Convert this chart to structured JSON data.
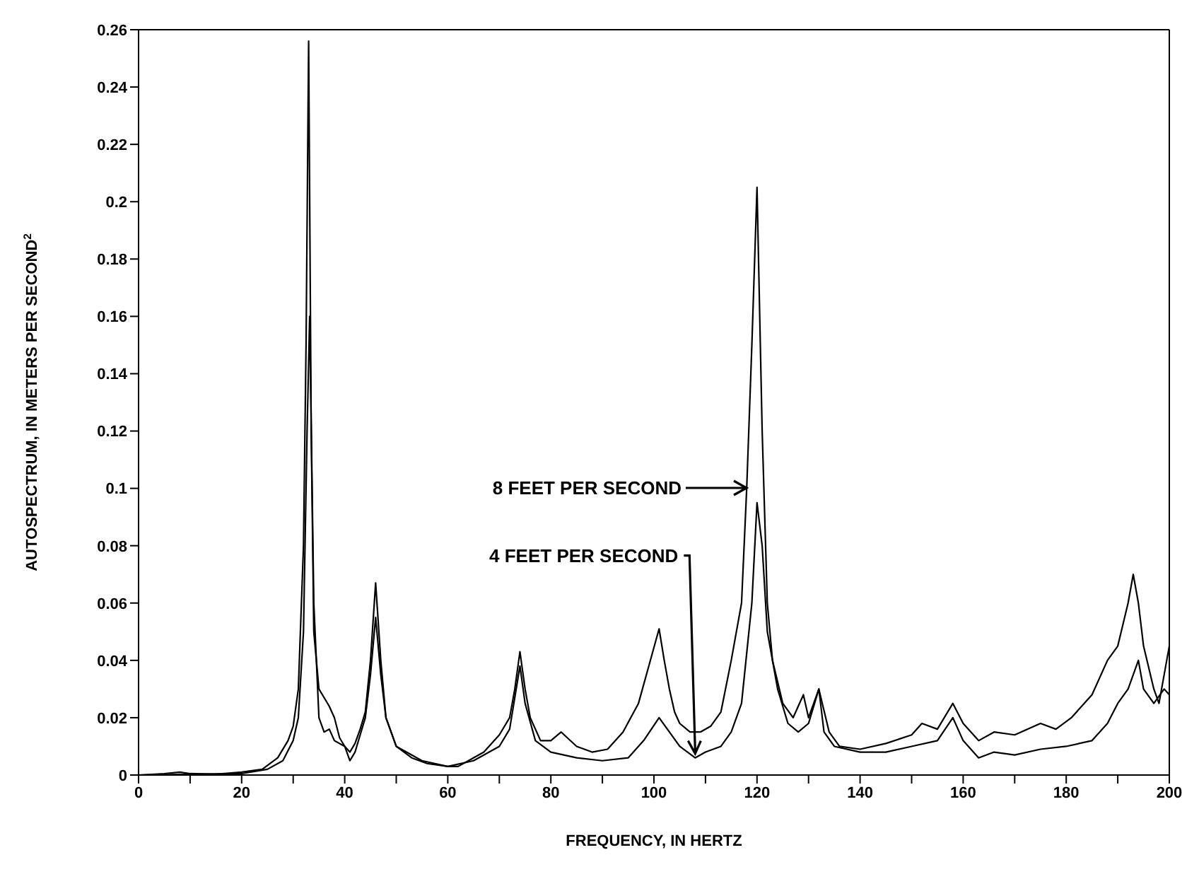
{
  "chart_data": {
    "type": "line",
    "xlabel": "FREQUENCY, IN HERTZ",
    "ylabel": "AUTOSPECTRUM, IN METERS PER SECOND$^{2}$",
    "xlim": [
      0,
      200
    ],
    "ylim": [
      0,
      0.26
    ],
    "xticks": [
      0,
      {
        "value": 10,
        "label": null
      },
      20,
      {
        "value": 30,
        "label": null
      },
      40,
      {
        "value": 50,
        "label": null
      },
      60,
      {
        "value": 70,
        "label": null
      },
      80,
      {
        "value": 90,
        "label": null
      },
      100,
      {
        "value": 110,
        "label": null
      },
      120,
      {
        "value": 130,
        "label": null
      },
      140,
      {
        "value": 150,
        "label": null
      },
      160,
      {
        "value": 170,
        "label": null
      },
      180,
      {
        "value": 190,
        "label": null
      },
      200
    ],
    "yticks": [
      0,
      0.02,
      0.04,
      0.06,
      0.08,
      0.1,
      0.12,
      0.14,
      0.16,
      0.18,
      0.2,
      0.22,
      0.24,
      0.26
    ],
    "marker": "none",
    "line_style": "solid",
    "annotations": [
      "8 FEET PER SECOND",
      {
        "text": "4 FEET PER SECOND",
        "x": 108,
        "y": 0.007
      }
    ],
    "series": [
      {
        "color": "#000000",
        "x": [
          0,
          5,
          8,
          10,
          15,
          20,
          24,
          27,
          29,
          30,
          31,
          32,
          32.5,
          33,
          33.5,
          34,
          35,
          36,
          37,
          38,
          39,
          40,
          41,
          42,
          43,
          44,
          45,
          46,
          47,
          48,
          50,
          53,
          56,
          60,
          62,
          64,
          67,
          70,
          72,
          73,
          74,
          75,
          76,
          78,
          80,
          82,
          85,
          88,
          91,
          94,
          97,
          99,
          101,
          102,
          103,
          104,
          105,
          107,
          109,
          111,
          113,
          115,
          117,
          118,
          119,
          120,
          121,
          122,
          123,
          125,
          127,
          129,
          130,
          132,
          134,
          136,
          140,
          145,
          150,
          152,
          155,
          158,
          160,
          163,
          166,
          170,
          175,
          178,
          181,
          185,
          188,
          190,
          192,
          193,
          194,
          195,
          197,
          198,
          199,
          200
        ],
        "values": [
          0,
          0.0005,
          0.001,
          0.0005,
          0.0003,
          0.001,
          0.002,
          0.006,
          0.012,
          0.017,
          0.03,
          0.08,
          0.15,
          0.256,
          0.12,
          0.05,
          0.03,
          0.027,
          0.024,
          0.02,
          0.013,
          0.01,
          0.008,
          0.011,
          0.016,
          0.022,
          0.04,
          0.067,
          0.04,
          0.02,
          0.01,
          0.006,
          0.004,
          0.003,
          0.003,
          0.005,
          0.008,
          0.014,
          0.02,
          0.03,
          0.043,
          0.03,
          0.02,
          0.012,
          0.012,
          0.015,
          0.01,
          0.008,
          0.009,
          0.015,
          0.025,
          0.038,
          0.051,
          0.04,
          0.03,
          0.022,
          0.018,
          0.015,
          0.015,
          0.017,
          0.022,
          0.04,
          0.06,
          0.1,
          0.15,
          0.205,
          0.12,
          0.06,
          0.04,
          0.025,
          0.02,
          0.028,
          0.02,
          0.03,
          0.015,
          0.01,
          0.009,
          0.011,
          0.014,
          0.018,
          0.016,
          0.025,
          0.018,
          0.012,
          0.015,
          0.014,
          0.018,
          0.016,
          0.02,
          0.028,
          0.04,
          0.045,
          0.06,
          0.07,
          0.06,
          0.045,
          0.03,
          0.025,
          0.035,
          0.045
        ]
      },
      {
        "color": "#000000",
        "x": [
          0,
          10,
          20,
          25,
          28,
          30,
          31,
          32,
          32.7,
          33.2,
          34,
          35,
          36,
          37,
          38,
          40,
          41,
          42,
          44,
          45,
          46,
          47,
          48,
          50,
          55,
          60,
          65,
          70,
          72,
          74,
          75,
          77,
          80,
          85,
          90,
          95,
          98,
          101,
          103,
          105,
          108,
          110,
          113,
          115,
          117,
          119,
          120,
          121,
          122,
          124,
          126,
          128,
          130,
          132,
          133,
          135,
          140,
          145,
          150,
          155,
          158,
          160,
          163,
          166,
          170,
          175,
          180,
          185,
          188,
          190,
          192,
          194,
          195,
          197,
          199,
          200
        ],
        "values": [
          0,
          0.0003,
          0.0005,
          0.002,
          0.005,
          0.012,
          0.02,
          0.05,
          0.12,
          0.16,
          0.06,
          0.02,
          0.015,
          0.016,
          0.012,
          0.01,
          0.005,
          0.008,
          0.02,
          0.035,
          0.055,
          0.035,
          0.02,
          0.01,
          0.005,
          0.003,
          0.005,
          0.01,
          0.016,
          0.038,
          0.025,
          0.012,
          0.008,
          0.006,
          0.005,
          0.006,
          0.012,
          0.02,
          0.015,
          0.01,
          0.006,
          0.008,
          0.01,
          0.015,
          0.025,
          0.06,
          0.095,
          0.08,
          0.05,
          0.03,
          0.018,
          0.015,
          0.018,
          0.03,
          0.015,
          0.01,
          0.008,
          0.008,
          0.01,
          0.012,
          0.02,
          0.012,
          0.006,
          0.008,
          0.007,
          0.009,
          0.01,
          0.012,
          0.018,
          0.025,
          0.03,
          0.04,
          0.03,
          0.025,
          0.03,
          0.028
        ]
      }
    ]
  }
}
